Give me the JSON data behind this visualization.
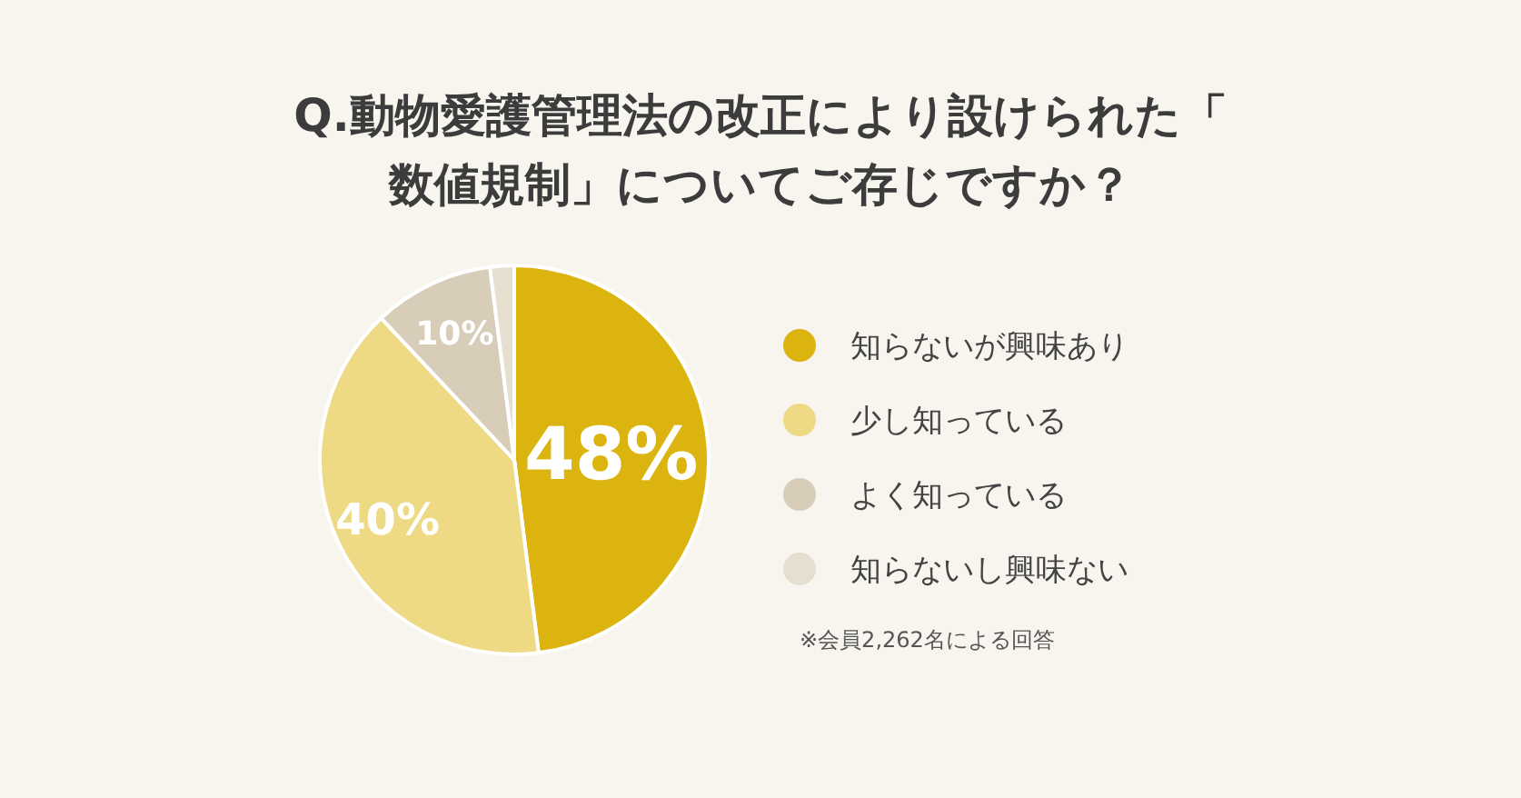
{
  "chart_data": {
    "type": "pie",
    "title": "Q.動物愛護管理法の改正により設けられた「数値規制」についてご存じですか？",
    "categories": [
      "知らないが興味あり",
      "少し知っている",
      "よく知っている",
      "知らないし興味ない"
    ],
    "values": [
      48,
      40,
      10,
      2
    ],
    "value_labels": [
      "48%",
      "40%",
      "10%",
      null
    ],
    "colors": [
      "#dcb40f",
      "#eed984",
      "#d8cdb8",
      "#e6dfd0"
    ],
    "legend": "right",
    "annotations": [
      "※会員2,262名による回答"
    ]
  }
}
